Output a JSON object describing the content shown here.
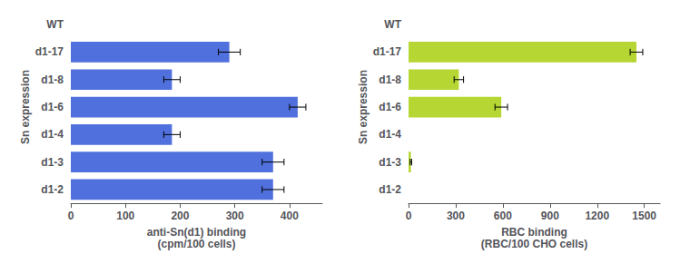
{
  "chart_data": [
    {
      "type": "bar",
      "orientation": "horizontal",
      "categories": [
        "WT",
        "d1-17",
        "d1-8",
        "d1-6",
        "d1-4",
        "d1-3",
        "d1-2"
      ],
      "values": [
        0,
        290,
        185,
        415,
        185,
        370,
        370
      ],
      "errors": [
        0,
        20,
        15,
        15,
        15,
        20,
        20
      ],
      "xlabel": "anti-Sn(d1) binding\n(cpm/100 cells)",
      "ylabel": "Sn expression",
      "xlim": [
        0,
        460
      ],
      "xticks": [
        0,
        100,
        200,
        300,
        400
      ],
      "grid": false
    },
    {
      "type": "bar",
      "orientation": "horizontal",
      "categories": [
        "WT",
        "d1-17",
        "d1-8",
        "d1-6",
        "d1-4",
        "d1-3",
        "d1-2"
      ],
      "values": [
        0,
        1450,
        320,
        590,
        0,
        15,
        0
      ],
      "errors": [
        0,
        40,
        30,
        40,
        0,
        5,
        0
      ],
      "xlabel": "RBC binding\n(RBC/100 CHO cells)",
      "ylabel": "Sn expression",
      "xlim": [
        0,
        1600
      ],
      "xticks": [
        0,
        300,
        600,
        900,
        1200,
        1500
      ],
      "grid": false
    }
  ]
}
